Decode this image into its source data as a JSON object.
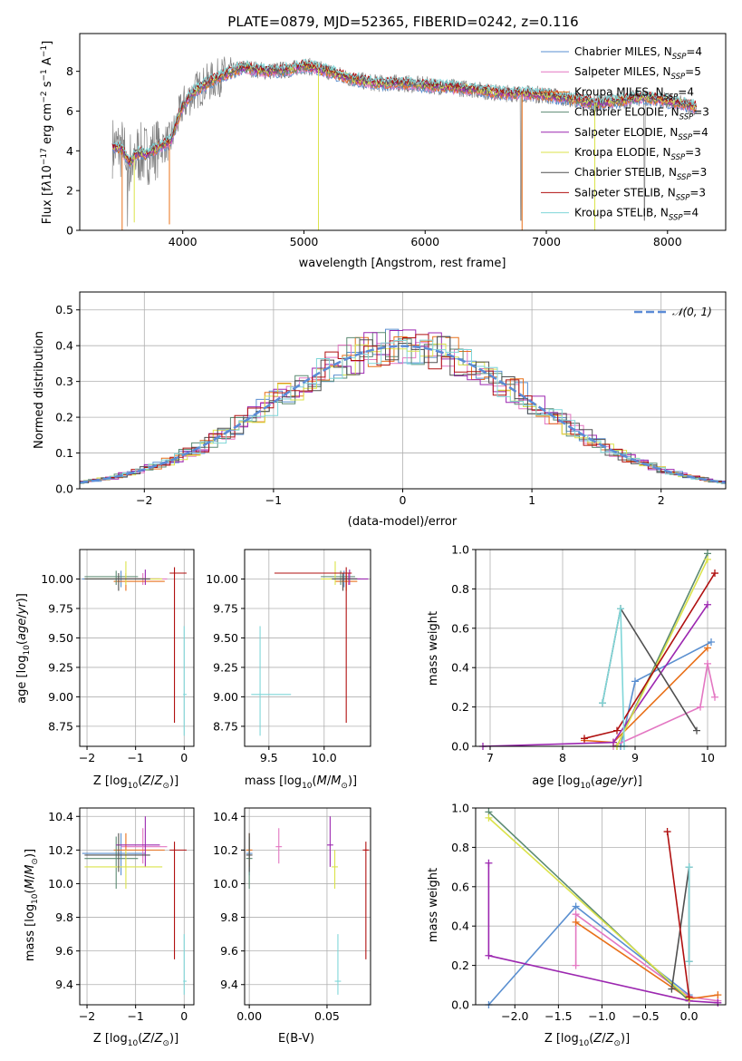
{
  "figure": {
    "title": "PLATE=0879, MJD=52365, FIBERID=0242, z=0.116"
  },
  "models": [
    {
      "name": "Chabrier MILES",
      "nssp": "4",
      "color": "#5a8fd0"
    },
    {
      "name": "Salpeter MILES",
      "nssp": "5",
      "color": "#e377c2"
    },
    {
      "name": "Kroupa MILES",
      "nssp": "4",
      "color": "#e8701a"
    },
    {
      "name": "Chabrier ELODIE",
      "nssp": "3",
      "color": "#5b8a72"
    },
    {
      "name": "Salpeter ELODIE",
      "nssp": "4",
      "color": "#9c27b0"
    },
    {
      "name": "Kroupa ELODIE",
      "nssp": "3",
      "color": "#dbe34a"
    },
    {
      "name": "Chabrier STELIB",
      "nssp": "3",
      "color": "#505050"
    },
    {
      "name": "Salpeter STELIB",
      "nssp": "3",
      "color": "#b01010"
    },
    {
      "name": "Kroupa STELIB",
      "nssp": "4",
      "color": "#7fd6d8"
    }
  ],
  "chart_data": [
    {
      "id": "spectrum",
      "type": "line",
      "xlabel": "wavelength [Angstrom, rest frame]",
      "ylabel": "Flux [f_λ 10^-17 erg cm^-2 s^-1 A^-1]",
      "xlim": [
        3150,
        8480
      ],
      "ylim": [
        0,
        9.9
      ],
      "xticks": [
        4000,
        5000,
        6000,
        7000,
        8000
      ],
      "yticks": [
        0,
        2,
        4,
        6,
        8
      ],
      "grid": false,
      "legend": "upper-right",
      "data_color": "#808080",
      "continuum": {
        "x": [
          3420,
          3500,
          3560,
          3620,
          3700,
          3800,
          3900,
          4000,
          4100,
          4200,
          4300,
          4500,
          4700,
          4900,
          5000,
          5200,
          5400,
          5600,
          5800,
          6000,
          6200,
          6400,
          6600,
          6800,
          7000,
          7200,
          7400,
          7600,
          7800,
          8000,
          8240
        ],
        "y": [
          4.2,
          4.1,
          3.4,
          3.9,
          3.8,
          4.2,
          4.5,
          6.3,
          7.0,
          7.4,
          7.7,
          8.2,
          8.0,
          8.1,
          8.3,
          8.0,
          7.6,
          7.4,
          7.4,
          7.3,
          7.2,
          7.1,
          6.9,
          6.9,
          6.8,
          6.6,
          6.4,
          6.5,
          6.7,
          6.5,
          6.2
        ]
      }
    },
    {
      "id": "residuals",
      "type": "histogram",
      "xlabel": "(data-model)/error",
      "ylabel": "Normed distribution",
      "xlim": [
        -2.5,
        2.5
      ],
      "ylim": [
        0,
        0.55
      ],
      "xticks": [
        -2,
        -1,
        0,
        1,
        2
      ],
      "yticks": [
        0.0,
        0.1,
        0.2,
        0.3,
        0.4,
        0.5
      ],
      "grid": true,
      "legend": "upper-right",
      "gaussian_label": "𝒩(0, 1)",
      "gaussian_color": "#5b8bd6",
      "bin_width": 0.1
    },
    {
      "id": "age-vs-Z",
      "type": "errorbar",
      "xlabel": "Z [log10(Z/Z⊙)]",
      "ylabel": "age [log10(age/yr)]",
      "xlim": [
        -2.15,
        0.2
      ],
      "ylim": [
        8.58,
        10.25
      ],
      "xticks": [
        -2,
        -1,
        0
      ],
      "yticks": [
        8.75,
        9.0,
        9.25,
        9.5,
        9.75,
        10.0
      ],
      "grid": true
    },
    {
      "id": "age-vs-mass",
      "type": "errorbar",
      "xlabel": "mass [log10(M/M⊙)]",
      "ylabel": "",
      "xlim": [
        9.28,
        10.42
      ],
      "ylim": [
        8.58,
        10.25
      ],
      "xticks": [
        9.5,
        10.0
      ],
      "yticks": [
        8.75,
        9.0,
        9.25,
        9.5,
        9.75,
        10.0
      ],
      "grid": true
    },
    {
      "id": "weight-vs-age",
      "type": "line",
      "xlabel": "age [log10(age/yr)]",
      "ylabel": "mass weight",
      "xlim": [
        6.8,
        10.25
      ],
      "ylim": [
        0,
        1.0
      ],
      "xticks": [
        7,
        8,
        9,
        10
      ],
      "yticks": [
        0.0,
        0.2,
        0.4,
        0.6,
        0.8,
        1.0
      ],
      "grid": true
    },
    {
      "id": "mass-vs-Z",
      "type": "errorbar",
      "xlabel": "Z [log10(Z/Z⊙)]",
      "ylabel": "mass [log10(M/M⊙)]",
      "xlim": [
        -2.15,
        0.2
      ],
      "ylim": [
        9.28,
        10.45
      ],
      "xticks": [
        -2,
        -1,
        0
      ],
      "yticks": [
        9.4,
        9.6,
        9.8,
        10.0,
        10.2,
        10.4
      ],
      "grid": true
    },
    {
      "id": "mass-vs-ebv",
      "type": "errorbar",
      "xlabel": "E(B-V)",
      "ylabel": "",
      "xlim": [
        -0.003,
        0.078
      ],
      "ylim": [
        9.28,
        10.45
      ],
      "xticks": [
        0.0,
        0.05
      ],
      "yticks": [
        9.4,
        9.6,
        9.8,
        10.0,
        10.2,
        10.4
      ],
      "grid": true
    },
    {
      "id": "weight-vs-Z",
      "type": "line",
      "xlabel": "Z [log10(Z/Z⊙)]",
      "ylabel": "mass weight",
      "xlim": [
        -2.45,
        0.42
      ],
      "ylim": [
        0,
        1.0
      ],
      "xticks": [
        -2.0,
        -1.5,
        -1.0,
        -0.5,
        0.0
      ],
      "yticks": [
        0.0,
        0.2,
        0.4,
        0.6,
        0.8,
        1.0
      ],
      "grid": true
    }
  ],
  "fits": [
    {
      "age": 10.0,
      "age_lo": 9.93,
      "age_hi": 10.07,
      "Z": -1.3,
      "Z_lo": -2.1,
      "Z_hi": -0.8,
      "mass": 10.18,
      "mass_lo": 10.05,
      "mass_hi": 10.3,
      "ebv": 0.0,
      "age_w": [
        8.8,
        9.0,
        10.05
      ],
      "w_age": [
        0.0,
        0.33,
        0.53
      ],
      "Z_w": [
        -2.3,
        -1.3,
        0.0
      ],
      "w_Z": [
        0.0,
        0.5,
        0.05
      ]
    },
    {
      "age": 10.0,
      "age_lo": 9.95,
      "age_hi": 10.05,
      "Z": -0.85,
      "Z_lo": -1.3,
      "Z_hi": -0.35,
      "mass": 10.22,
      "mass_lo": 10.12,
      "mass_hi": 10.33,
      "ebv": 0.019,
      "age_w": [
        8.7,
        9.9,
        10.0,
        10.1
      ],
      "w_age": [
        0.0,
        0.2,
        0.42,
        0.25
      ],
      "Z_w": [
        -1.3,
        -1.3,
        0.0,
        0.33
      ],
      "w_Z": [
        0.2,
        0.46,
        0.04,
        0.02
      ]
    },
    {
      "age": 9.98,
      "age_lo": 9.9,
      "age_hi": 10.05,
      "Z": -1.2,
      "Z_lo": -1.45,
      "Z_hi": -0.4,
      "mass": 10.2,
      "mass_lo": 10.1,
      "mass_hi": 10.3,
      "ebv": 0.0,
      "age_w": [
        8.3,
        8.7,
        10.0
      ],
      "w_age": [
        0.03,
        0.02,
        0.5
      ],
      "Z_w": [
        -1.3,
        0.0,
        0.33
      ],
      "w_Z": [
        0.42,
        0.03,
        0.05
      ]
    },
    {
      "age": 10.02,
      "age_lo": 9.95,
      "age_hi": 10.07,
      "Z": -1.4,
      "Z_lo": -2.05,
      "Z_hi": -0.95,
      "mass": 10.15,
      "mass_lo": 9.97,
      "mass_hi": 10.28,
      "ebv": 0.0,
      "age_w": [
        8.75,
        10.0
      ],
      "w_age": [
        0.0,
        0.98
      ],
      "Z_w": [
        -2.3,
        0.0
      ],
      "w_Z": [
        0.98,
        0.02
      ]
    },
    {
      "age": 10.0,
      "age_lo": 9.95,
      "age_hi": 10.08,
      "Z": -0.8,
      "Z_lo": -1.4,
      "Z_hi": -0.5,
      "mass": 10.23,
      "mass_lo": 10.1,
      "mass_hi": 10.4,
      "ebv": 0.052,
      "age_w": [
        6.9,
        8.7,
        10.0
      ],
      "w_age": [
        0.0,
        0.02,
        0.72
      ],
      "Z_w": [
        -2.3,
        -2.3,
        0.0,
        0.33
      ],
      "w_Z": [
        0.72,
        0.25,
        0.02,
        0.01
      ]
    },
    {
      "age": 10.0,
      "age_lo": 9.95,
      "age_hi": 10.15,
      "Z": -1.2,
      "Z_lo": -2.05,
      "Z_hi": -0.45,
      "mass": 10.1,
      "mass_lo": 9.97,
      "mass_hi": 10.2,
      "ebv": 0.055,
      "age_w": [
        8.75,
        10.0
      ],
      "w_age": [
        0.0,
        0.95
      ],
      "Z_w": [
        -2.3,
        0.0
      ],
      "w_Z": [
        0.95,
        0.03
      ]
    },
    {
      "age": 10.0,
      "age_lo": 9.9,
      "age_hi": 10.05,
      "Z": -1.35,
      "Z_lo": -2.05,
      "Z_hi": -0.7,
      "mass": 10.17,
      "mass_lo": 10.07,
      "mass_hi": 10.3,
      "ebv": 0.0,
      "age_w": [
        8.55,
        8.8,
        9.85
      ],
      "w_age": [
        0.22,
        0.7,
        0.08
      ],
      "Z_w": [
        -0.2,
        0.0,
        0.0
      ],
      "w_Z": [
        0.08,
        0.7,
        0.22
      ]
    },
    {
      "age": 10.05,
      "age_lo": 8.78,
      "age_hi": 10.1,
      "Z": -0.2,
      "Z_lo": -0.3,
      "Z_hi": 0.05,
      "mass": 10.2,
      "mass_lo": 9.55,
      "mass_hi": 10.25,
      "ebv": 0.075,
      "age_w": [
        8.3,
        8.75,
        10.1
      ],
      "w_age": [
        0.04,
        0.08,
        0.88
      ],
      "Z_w": [
        -0.25,
        0.0
      ],
      "w_Z": [
        0.88,
        0.04
      ]
    },
    {
      "age": 9.02,
      "age_lo": 8.67,
      "age_hi": 9.6,
      "Z": 0.0,
      "Z_lo": -0.02,
      "Z_hi": 0.05,
      "mass": 9.42,
      "mass_lo": 9.34,
      "mass_hi": 9.7,
      "ebv": 0.057,
      "age_w": [
        8.55,
        8.8,
        8.85
      ],
      "w_age": [
        0.22,
        0.7,
        0.0
      ],
      "Z_w": [
        0.0,
        0.0
      ],
      "w_Z": [
        0.22,
        0.7
      ]
    }
  ]
}
